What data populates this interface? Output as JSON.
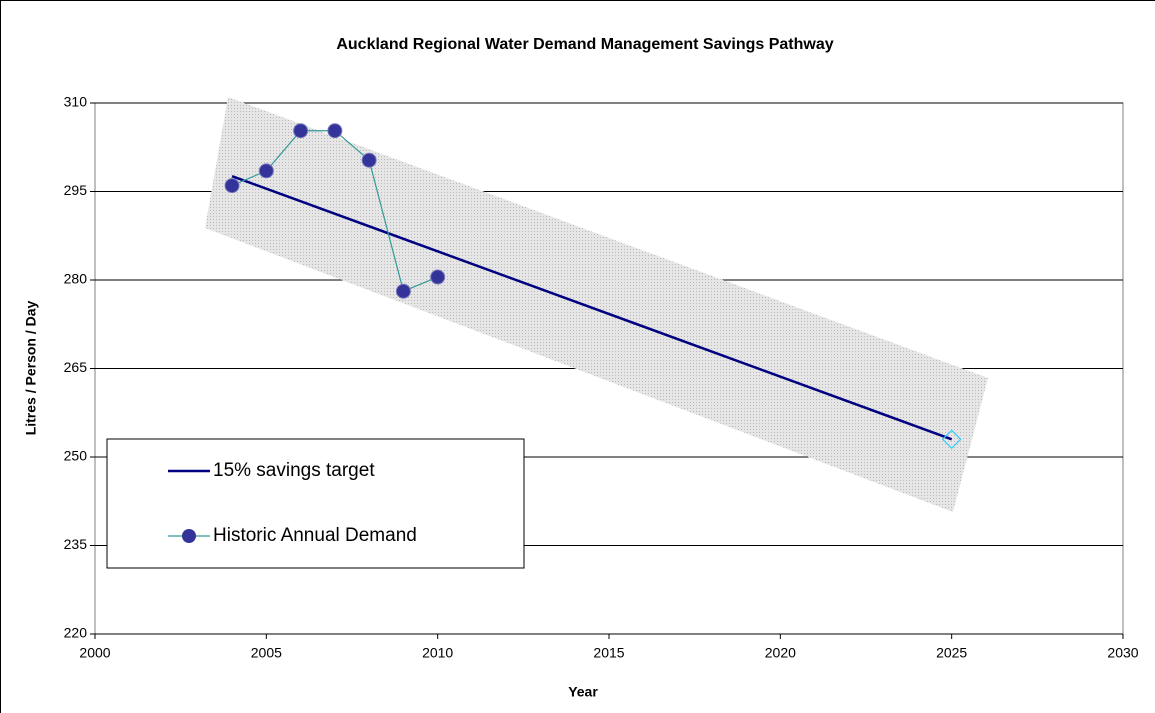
{
  "chart_data": {
    "type": "line",
    "title": "Auckland Regional Water Demand Management Savings Pathway",
    "xlabel": "Year",
    "ylabel": "Litres / Person / Day",
    "xlim": [
      2000,
      2030
    ],
    "xticks": [
      2000,
      2005,
      2010,
      2015,
      2020,
      2025,
      2030
    ],
    "ylim": [
      220,
      310
    ],
    "yticks": [
      220,
      235,
      250,
      265,
      280,
      295,
      310
    ],
    "grid": true,
    "legend": "lower left",
    "series": [
      {
        "name": "15% savings target",
        "color": "#000080",
        "x": [
          2004,
          2025
        ],
        "values": [
          297.6,
          253
        ]
      },
      {
        "name": "Historic Annual Demand",
        "color": "#339999",
        "marker_color": "#333399",
        "x": [
          2004,
          2005,
          2006,
          2007,
          2008,
          2009,
          2010
        ],
        "values": [
          296,
          298.5,
          305.3,
          305.3,
          300.3,
          278.1,
          280.5
        ]
      }
    ]
  }
}
